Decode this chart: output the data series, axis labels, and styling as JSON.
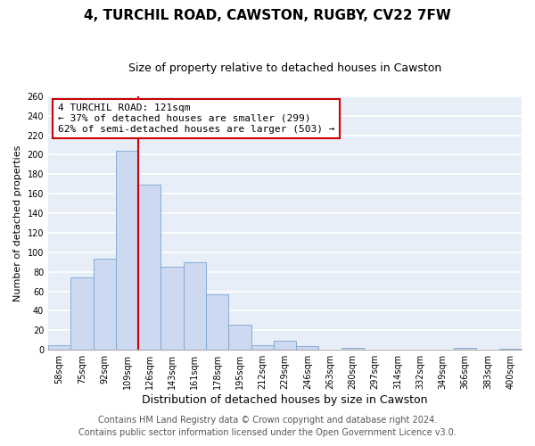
{
  "title": "4, TURCHIL ROAD, CAWSTON, RUGBY, CV22 7FW",
  "subtitle": "Size of property relative to detached houses in Cawston",
  "xlabel": "Distribution of detached houses by size in Cawston",
  "ylabel": "Number of detached properties",
  "bin_labels": [
    "58sqm",
    "75sqm",
    "92sqm",
    "109sqm",
    "126sqm",
    "143sqm",
    "161sqm",
    "178sqm",
    "195sqm",
    "212sqm",
    "229sqm",
    "246sqm",
    "263sqm",
    "280sqm",
    "297sqm",
    "314sqm",
    "332sqm",
    "349sqm",
    "366sqm",
    "383sqm",
    "400sqm"
  ],
  "bar_heights": [
    5,
    74,
    93,
    204,
    169,
    85,
    90,
    57,
    26,
    5,
    9,
    4,
    0,
    2,
    0,
    0,
    0,
    0,
    2,
    0,
    1
  ],
  "bar_color": "#ccd9f0",
  "bar_edge_color": "#7ba4d4",
  "vline_x_index": 4,
  "vline_color": "#cc0000",
  "ylim": [
    0,
    260
  ],
  "yticks": [
    0,
    20,
    40,
    60,
    80,
    100,
    120,
    140,
    160,
    180,
    200,
    220,
    240,
    260
  ],
  "annotation_title": "4 TURCHIL ROAD: 121sqm",
  "annotation_line1": "← 37% of detached houses are smaller (299)",
  "annotation_line2": "62% of semi-detached houses are larger (503) →",
  "annotation_box_color": "#ffffff",
  "annotation_box_edge": "#cc0000",
  "footer1": "Contains HM Land Registry data © Crown copyright and database right 2024.",
  "footer2": "Contains public sector information licensed under the Open Government Licence v3.0.",
  "fig_bg_color": "#ffffff",
  "plot_bg_color": "#e8eef8",
  "title_fontsize": 11,
  "subtitle_fontsize": 9,
  "xlabel_fontsize": 9,
  "ylabel_fontsize": 8,
  "tick_fontsize": 7,
  "annotation_fontsize": 8,
  "footer_fontsize": 7,
  "grid_color": "#ffffff",
  "grid_linewidth": 1.2
}
